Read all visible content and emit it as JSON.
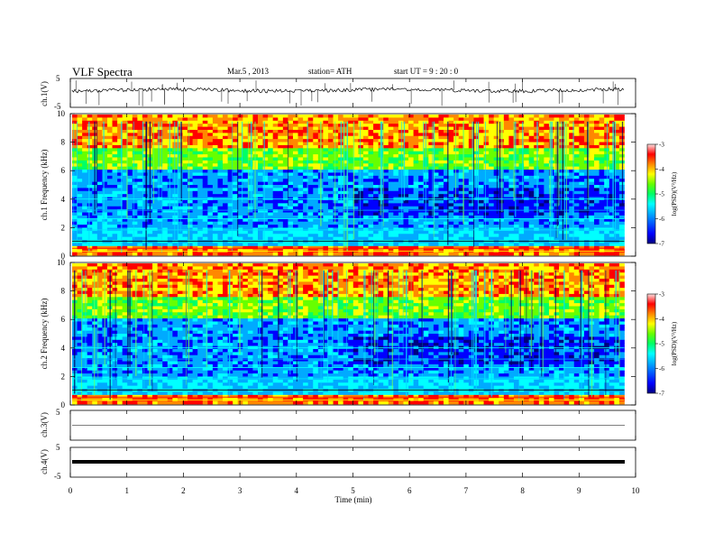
{
  "header": {
    "title": "VLF  Spectra",
    "date": "Mar.5  , 2013",
    "station": "station= ATH",
    "start": "start  UT  =   9  : 20 : 0"
  },
  "colors": {
    "spectrogram_scale": [
      "#000080",
      "#0000ff",
      "#00aaff",
      "#00ffff",
      "#00ff66",
      "#66ff00",
      "#ffff00",
      "#ff8800",
      "#ff0000",
      "#ffe0e0"
    ],
    "trace": "#000000"
  },
  "chart_data": [
    {
      "type": "line",
      "panel": "ch1-waveform",
      "ylabel": "ch.1(V)",
      "ylim": [
        -5,
        5
      ],
      "yticks": [
        "5",
        "-5"
      ],
      "x_range_min": [
        0,
        9.8
      ],
      "description_level": 0,
      "series": [
        {
          "values_level": [
            0,
            0.2,
            -0.2,
            0.1,
            -0.1,
            0.3,
            0,
            -0.3,
            0.1,
            0
          ]
        }
      ]
    },
    {
      "type": "heatmap",
      "panel": "ch1-spectrogram",
      "ylabel": "ch.1  Frequency  (kHz)",
      "ylim": [
        0,
        10
      ],
      "yticks": [
        "0",
        "2",
        "4",
        "6",
        "8",
        "10"
      ],
      "colorbar": {
        "label": "log(PSD)(V²/Hz)",
        "range": [
          -7,
          -3
        ],
        "ticks": [
          "-3",
          "-4",
          "-5",
          "-6",
          "-7"
        ]
      }
    },
    {
      "type": "heatmap",
      "panel": "ch2-spectrogram",
      "ylabel": "ch.2  Frequency  (kHz)",
      "ylim": [
        0,
        10
      ],
      "yticks": [
        "0",
        "2",
        "4",
        "6",
        "8",
        "10"
      ],
      "colorbar": {
        "label": "log(PSD)(V²/Hz)",
        "range": [
          -7,
          -3
        ],
        "ticks": [
          "-3",
          "-4",
          "-5",
          "-6",
          "-7"
        ]
      }
    },
    {
      "type": "line",
      "panel": "ch3-waveform",
      "ylabel": "ch.3(V)",
      "ylim": [
        -5,
        5
      ],
      "yticks": [
        "5"
      ],
      "series": [
        {
          "values_level": [
            0,
            0,
            0,
            0,
            0,
            0,
            0,
            0,
            0,
            0
          ]
        }
      ]
    },
    {
      "type": "line",
      "panel": "ch4-waveform",
      "ylabel": "ch.4(V)",
      "ylim": [
        -5,
        5
      ],
      "yticks": [
        "5",
        "-5"
      ],
      "series": [
        {
          "values_level": [
            0,
            0,
            0,
            0,
            0,
            0,
            0,
            0,
            0,
            0
          ]
        }
      ]
    }
  ],
  "xaxis": {
    "label": "Time  (min)",
    "range": [
      0,
      10
    ],
    "ticks": [
      "0",
      "1",
      "2",
      "3",
      "4",
      "5",
      "6",
      "7",
      "8",
      "9",
      "10"
    ],
    "data_end": 9.8
  }
}
